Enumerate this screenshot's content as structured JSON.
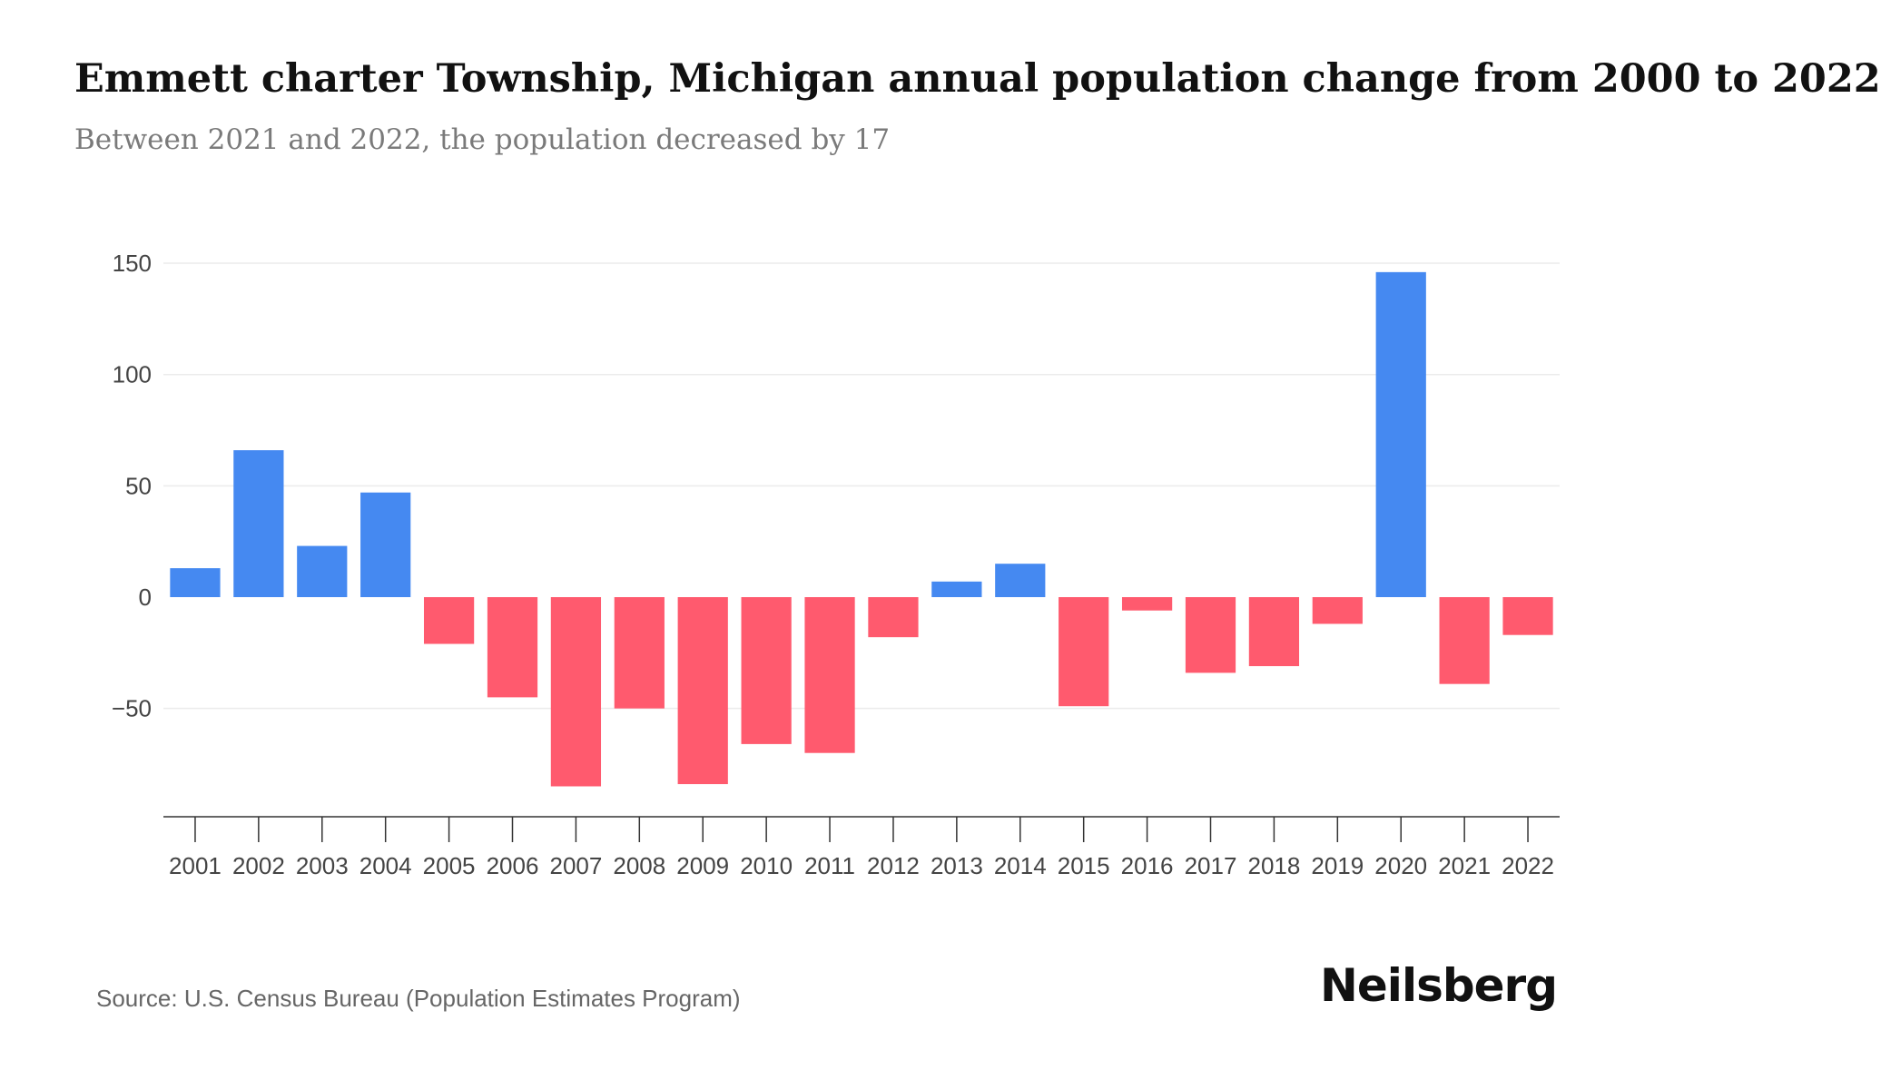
{
  "title": "Emmett charter Township, Michigan annual population change from 2000 to 2022",
  "subtitle": "Between 2021 and 2022, the population decreased by 17",
  "source": "Source: U.S. Census Bureau (Population Estimates Program)",
  "brand": "Neilsberg",
  "colors": {
    "positive": "#4589f1",
    "negative": "#ff5a6e",
    "grid": "#ebebeb",
    "axis": "#333333",
    "tick_label": "#444444"
  },
  "chart_data": {
    "type": "bar",
    "title": "Emmett charter Township, Michigan annual population change from 2000 to 2022",
    "xlabel": "",
    "ylabel": "",
    "ylim": [
      -98,
      150
    ],
    "yticks": [
      150,
      100,
      50,
      0,
      -50
    ],
    "ytick_labels": [
      "150",
      "100",
      "50",
      "0",
      "−50"
    ],
    "grid": true,
    "legend": "none",
    "categories": [
      "2001",
      "2002",
      "2003",
      "2004",
      "2005",
      "2006",
      "2007",
      "2008",
      "2009",
      "2010",
      "2011",
      "2012",
      "2013",
      "2014",
      "2015",
      "2016",
      "2017",
      "2018",
      "2019",
      "2020",
      "2021",
      "2022"
    ],
    "values": [
      13,
      66,
      23,
      47,
      -21,
      -45,
      -85,
      -50,
      -84,
      -66,
      -70,
      -18,
      7,
      15,
      -49,
      -6,
      -34,
      -31,
      -12,
      146,
      -39,
      -17
    ]
  }
}
